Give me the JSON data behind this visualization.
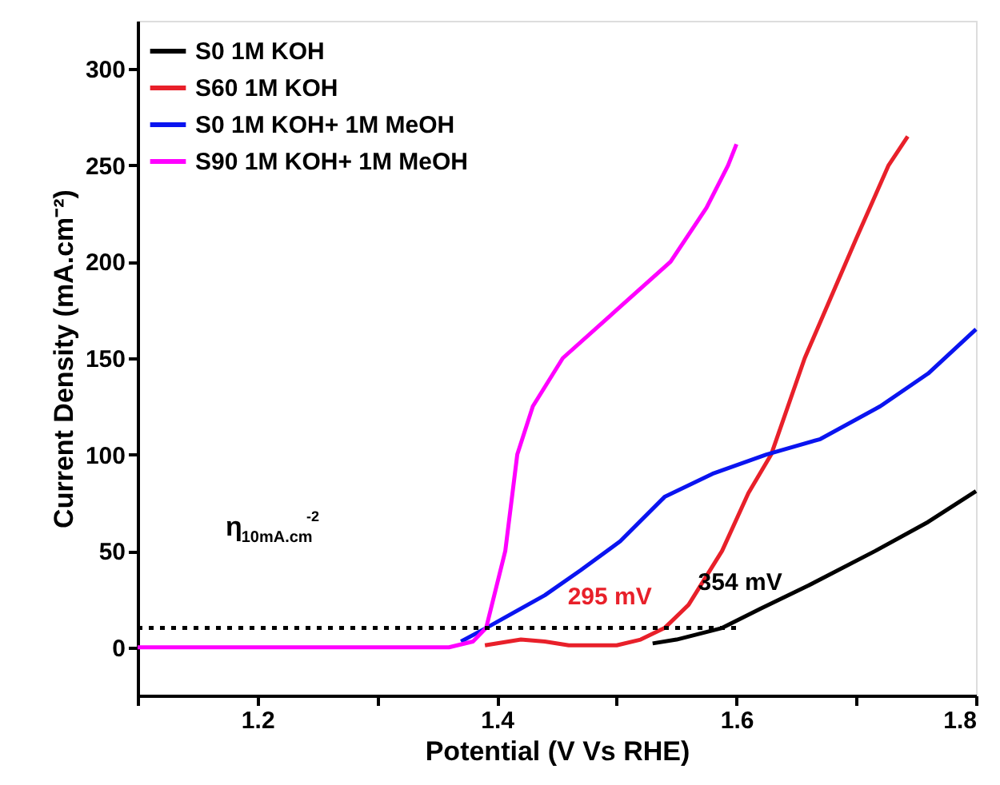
{
  "chart_data": {
    "type": "line",
    "xlabel": "Potential (V Vs RHE)",
    "ylabel": "Current Density (mA.cm⁻²)",
    "xlim": [
      1.1,
      1.8
    ],
    "xticks": [
      {
        "value": 1.1,
        "label": null
      },
      {
        "value": 1.2,
        "label": "1.2"
      },
      {
        "value": 1.3,
        "label": null
      },
      {
        "value": 1.4,
        "label": "1.4"
      },
      {
        "value": 1.5,
        "label": null
      },
      {
        "value": 1.6,
        "label": "1.6"
      },
      {
        "value": 1.7,
        "label": null
      },
      {
        "value": 1.8,
        "label": "1.8"
      }
    ],
    "ylim": [
      -25,
      325
    ],
    "yticks": [
      0,
      50,
      100,
      150,
      200,
      250,
      300
    ],
    "grid": false,
    "legend": "top left",
    "marker": "none",
    "line_style": "solid",
    "series": [
      {
        "name": "S0   1M KOH",
        "color": "#000000",
        "x": [
          1.53,
          1.55,
          1.588,
          1.62,
          1.66,
          1.716,
          1.76,
          1.8
        ],
        "values": [
          2,
          4,
          10,
          20,
          32,
          50,
          65,
          81
        ]
      },
      {
        "name": "S60 1M KOH",
        "color": "#e8202a",
        "x": [
          1.39,
          1.42,
          1.44,
          1.46,
          1.5,
          1.52,
          1.54,
          1.56,
          1.588,
          1.61,
          1.629,
          1.657,
          1.7,
          1.727,
          1.743
        ],
        "values": [
          1,
          4,
          3,
          1,
          1,
          4,
          10,
          22,
          50,
          80,
          100,
          150,
          212,
          250,
          265
        ]
      },
      {
        "name": "S0   1M KOH+ 1M MeOH",
        "color": "#0a14f0",
        "x": [
          1.37,
          1.391,
          1.44,
          1.47,
          1.503,
          1.54,
          1.58,
          1.625,
          1.67,
          1.72,
          1.76,
          1.8
        ],
        "values": [
          3,
          10,
          27,
          40,
          55,
          78,
          90,
          100,
          108,
          125,
          142,
          165
        ]
      },
      {
        "name": "S90 1M KOH+ 1M MeOH",
        "color": "#ff00ff",
        "x": [
          1.1,
          1.2,
          1.3,
          1.36,
          1.38,
          1.391,
          1.407,
          1.417,
          1.43,
          1.455,
          1.5,
          1.545,
          1.575,
          1.593,
          1.6
        ],
        "values": [
          0,
          0,
          0,
          0,
          3,
          10,
          50,
          100,
          125,
          150,
          175,
          200,
          228,
          250,
          261
        ]
      },
      {
        "color": "#000000",
        "line_style": "dotted",
        "x": [
          1.1,
          1.6
        ],
        "values": [
          10,
          10
        ]
      }
    ],
    "annotations": [
      {
        "text": "295 mV",
        "x": 1.54,
        "y": 10
      },
      {
        "text": "354 mV",
        "x": 1.588,
        "y": 10
      },
      "η$_{10mA.cm}$$^{-2}$"
    ]
  }
}
